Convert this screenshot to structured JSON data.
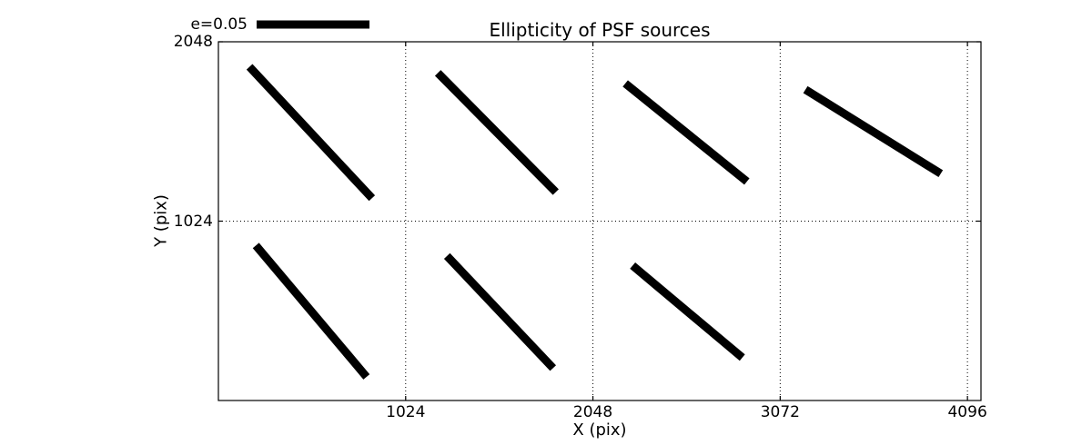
{
  "figure": {
    "background": "#ffffff"
  },
  "chart_data": {
    "type": "line",
    "subtype": "ellipticity-whisker-map",
    "title": "Ellipticity of PSF sources",
    "xlabel": "X (pix)",
    "ylabel": "Y (pix)",
    "xlim": [
      0,
      4170
    ],
    "ylim": [
      0,
      2048
    ],
    "xticks": [
      1024,
      2048,
      3072,
      4096
    ],
    "yticks": [
      1024,
      2048
    ],
    "grid": true,
    "grid_style": "dotted",
    "legend": {
      "label": "e=0.05",
      "position": "outside-top-left"
    },
    "colors": {
      "whisker": "#000000",
      "axis": "#000000",
      "grid": "#000000",
      "background": "#ffffff"
    },
    "segments": [
      {
        "x1": 170,
        "y1": 1905,
        "x2": 840,
        "y2": 1155
      },
      {
        "x1": 1200,
        "y1": 1870,
        "x2": 1845,
        "y2": 1190
      },
      {
        "x1": 2225,
        "y1": 1810,
        "x2": 2890,
        "y2": 1250
      },
      {
        "x1": 3210,
        "y1": 1775,
        "x2": 3950,
        "y2": 1295
      },
      {
        "x1": 205,
        "y1": 885,
        "x2": 810,
        "y2": 135
      },
      {
        "x1": 1250,
        "y1": 825,
        "x2": 1830,
        "y2": 185
      },
      {
        "x1": 2265,
        "y1": 770,
        "x2": 2865,
        "y2": 245
      }
    ]
  }
}
